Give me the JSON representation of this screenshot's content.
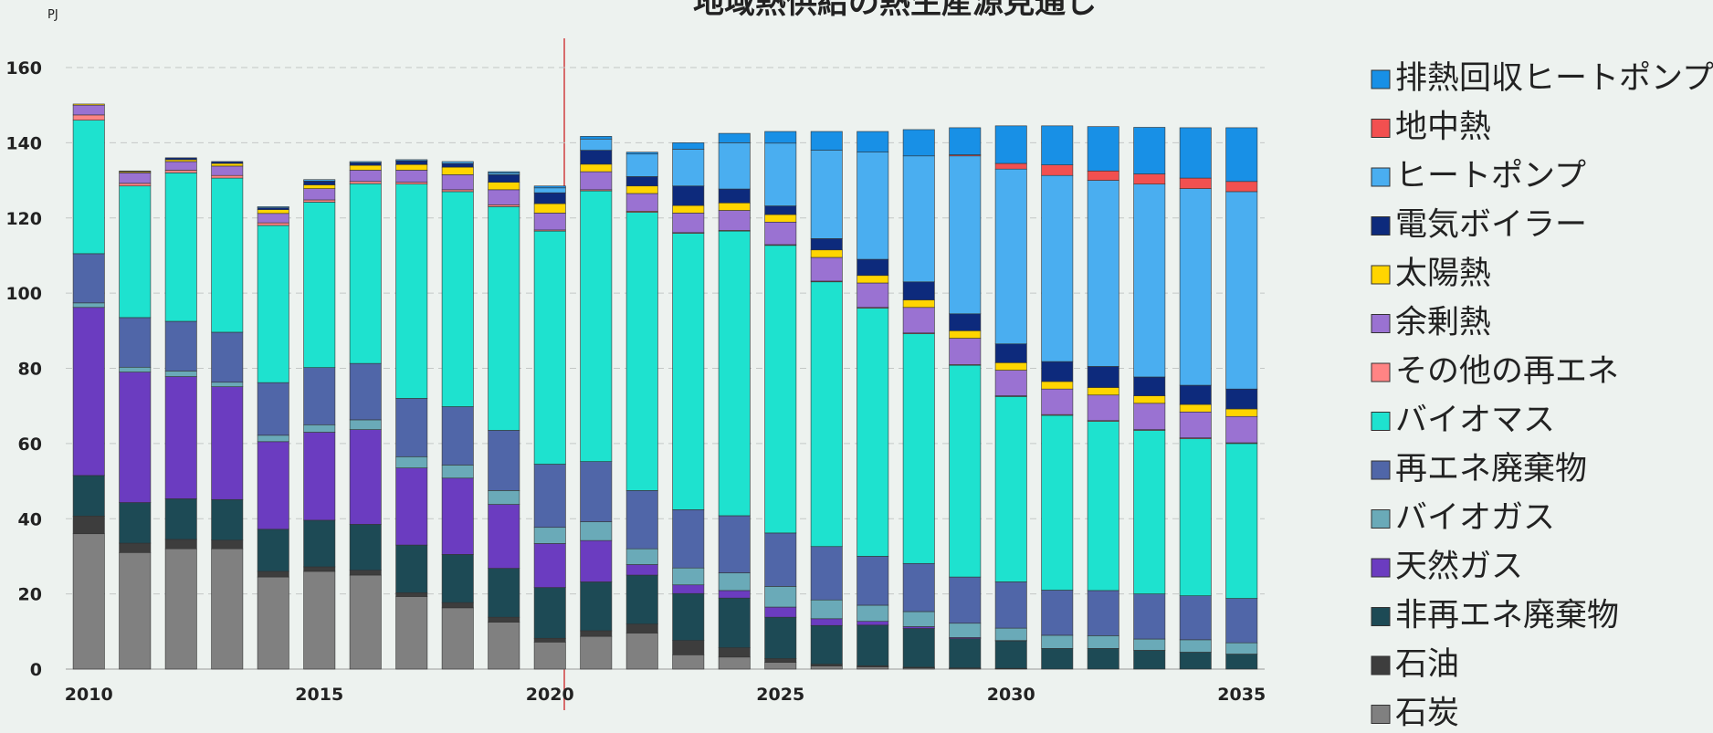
{
  "chart_data": {
    "type": "stacked_bar",
    "title": "地域熱供給の熱生産源見通し",
    "y_label": "PJ",
    "categories": [
      "2010",
      null,
      null,
      null,
      null,
      "2015",
      null,
      null,
      null,
      null,
      "2020",
      null,
      null,
      null,
      null,
      "2025",
      null,
      null,
      null,
      null,
      "2030",
      null,
      null,
      null,
      null,
      "2035"
    ],
    "ylim": [
      0,
      170
    ],
    "yticks": [
      0,
      20,
      40,
      60,
      80,
      100,
      120,
      140,
      160
    ],
    "grid": true,
    "legend": "right",
    "series": [
      {
        "name": "石炭",
        "color": "#808080",
        "values": [
          36,
          31,
          32,
          32,
          24.5,
          26,
          25,
          19.3,
          16.3,
          12.5,
          7.2,
          8.7,
          9.6,
          3.8,
          3.2,
          1.8,
          0.8,
          0.6,
          0.3,
          0.2,
          0.1,
          0,
          0,
          0,
          0,
          0
        ]
      },
      {
        "name": "石油",
        "color": "#3d3d3d",
        "values": [
          4.7,
          2.5,
          2.5,
          2.3,
          1.5,
          1.2,
          1.3,
          1,
          1.4,
          1.3,
          1,
          1.5,
          2.4,
          3.8,
          2.5,
          1,
          0.5,
          0.3,
          0.2,
          0.1,
          0.1,
          0,
          0,
          0,
          0,
          0
        ]
      },
      {
        "name": "非再エネ廃棄物",
        "color": "#1d4a55",
        "values": [
          10.8,
          10.8,
          10.8,
          10.8,
          11.2,
          12.4,
          12.2,
          12.7,
          12.8,
          13,
          13.5,
          13,
          13,
          12.5,
          13.2,
          11,
          10.3,
          10.8,
          10.3,
          7.8,
          7.3,
          5.5,
          5.5,
          5,
          4.5,
          4
        ]
      },
      {
        "name": "天然ガス",
        "color": "#6b3cc0",
        "values": [
          44.7,
          34.7,
          32.5,
          30,
          23.3,
          23.4,
          25.2,
          20.5,
          20.3,
          17,
          11.7,
          11,
          2.8,
          2.3,
          2,
          2.7,
          1.8,
          1,
          0.5,
          0.3,
          0.1,
          0,
          0,
          0,
          0,
          0
        ]
      },
      {
        "name": "バイオガス",
        "color": "#6aaab8",
        "values": [
          1.2,
          1.3,
          1.5,
          1.2,
          1.7,
          2,
          2.6,
          3,
          3.5,
          3.7,
          4.3,
          5,
          4.2,
          4.5,
          4.7,
          5.5,
          5,
          4.3,
          4,
          3.8,
          3.3,
          3.5,
          3.4,
          3,
          3.3,
          3
        ]
      },
      {
        "name": "再エネ廃棄物",
        "color": "#5066a8",
        "values": [
          13.1,
          13.2,
          13.2,
          13.3,
          14,
          15.2,
          15,
          15.5,
          15.5,
          16,
          16.8,
          16,
          15.5,
          15.5,
          15.2,
          14.2,
          14.2,
          13,
          12.8,
          12.3,
          12.3,
          12,
          12,
          12,
          11.7,
          11.8
        ]
      },
      {
        "name": "バイオマス",
        "color": "#1ee2cf",
        "values": [
          35.5,
          35,
          39.5,
          41,
          41.8,
          44,
          47.8,
          57,
          57.2,
          59.5,
          62,
          72,
          74,
          73.5,
          75.7,
          76.5,
          70.4,
          66,
          61.1,
          56.3,
          49.3,
          46.5,
          45,
          43.5,
          41.8,
          41.2
        ]
      },
      {
        "name": "その他の再エネ",
        "color": "#ff8484",
        "values": [
          1.4,
          0.7,
          0.7,
          0.7,
          0.7,
          0.6,
          0.6,
          0.5,
          0.5,
          0.5,
          0.3,
          0.3,
          0.3,
          0.2,
          0.2,
          0.2,
          0.2,
          0.2,
          0.2,
          0.2,
          0.2,
          0.2,
          0.2,
          0.2,
          0.2,
          0.2
        ]
      },
      {
        "name": "余剰熱",
        "color": "#9a72d2",
        "values": [
          2.6,
          2.8,
          2.3,
          2.5,
          2.5,
          3,
          3,
          3.2,
          4,
          4,
          4.5,
          4.8,
          4.7,
          5.2,
          5.3,
          6,
          6.3,
          6.5,
          6.8,
          7,
          6.8,
          6.8,
          6.8,
          7,
          6.9,
          7
        ]
      },
      {
        "name": "太陽熱",
        "color": "#ffd500",
        "values": [
          0.3,
          0.3,
          0.5,
          0.7,
          1,
          1,
          1.3,
          1.5,
          2,
          2,
          2.5,
          2,
          2,
          2,
          2,
          2,
          2,
          2,
          2,
          2,
          2,
          2,
          2,
          2,
          2,
          2
        ]
      },
      {
        "name": "電気ボイラー",
        "color": "#0d2a7c",
        "values": [
          0,
          0.2,
          0.5,
          0.5,
          0.5,
          1,
          0.7,
          1,
          1,
          2,
          2.9,
          3.7,
          2.5,
          5.2,
          3.7,
          2.3,
          3,
          4.3,
          4.8,
          4.5,
          5,
          5.3,
          5.6,
          5,
          5.1,
          5.3
        ]
      },
      {
        "name": "ヒートポンプ",
        "color": "#4aaef0",
        "values": [
          0,
          0,
          0,
          0,
          0.3,
          0.4,
          0.3,
          0.3,
          0.5,
          0.5,
          1.3,
          3,
          6,
          9.8,
          12.3,
          16.7,
          23.5,
          28.5,
          33.5,
          42,
          46.5,
          49.5,
          49.5,
          51.3,
          52.3,
          52.5
        ]
      },
      {
        "name": "地中熱",
        "color": "#f25050",
        "values": [
          0,
          0,
          0,
          0,
          0,
          0,
          0,
          0,
          0,
          0,
          0,
          0,
          0,
          0,
          0,
          0,
          0,
          0,
          0,
          0.3,
          1.5,
          2.8,
          2.5,
          2.7,
          2.8,
          2.7
        ]
      },
      {
        "name": "排熱回収ヒートポンプ",
        "color": "#1890e6",
        "values": [
          0,
          0,
          0,
          0,
          0,
          0,
          0,
          0,
          0,
          0.3,
          0.5,
          0.7,
          0.5,
          1.7,
          2.5,
          3.1,
          5,
          5.5,
          7,
          7.2,
          10,
          10.4,
          11.8,
          12.4,
          13.4,
          14.3
        ]
      }
    ]
  }
}
